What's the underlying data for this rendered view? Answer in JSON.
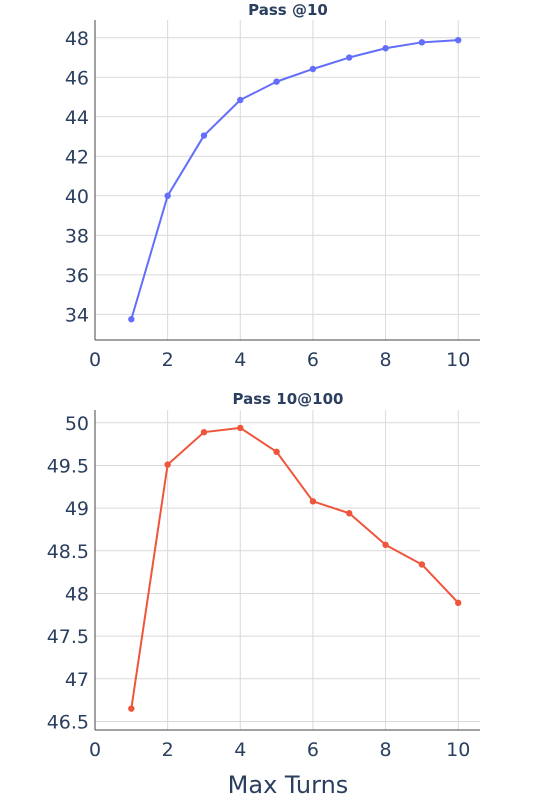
{
  "chart_data": [
    {
      "type": "line",
      "title": "Pass @10",
      "xlabel": "",
      "ylabel": "",
      "color": "#636efa",
      "x": [
        1,
        2,
        3,
        4,
        5,
        6,
        7,
        8,
        9,
        10
      ],
      "y": [
        33.75,
        40.0,
        43.05,
        44.85,
        45.78,
        46.42,
        47.0,
        47.47,
        47.77,
        47.88
      ],
      "xlim": [
        0,
        10.6
      ],
      "ylim": [
        32.7,
        48.9
      ],
      "xticks": [
        0,
        2,
        4,
        6,
        8,
        10
      ],
      "yticks": [
        34,
        36,
        38,
        40,
        42,
        44,
        46,
        48
      ],
      "ytick_labels": [
        "34",
        "36",
        "38",
        "40",
        "42",
        "44",
        "46",
        "48"
      ],
      "grid": true
    },
    {
      "type": "line",
      "title": "Pass 10@100",
      "xlabel": "Max Turns",
      "ylabel": "",
      "color": "#ef553b",
      "x": [
        1,
        2,
        3,
        4,
        5,
        6,
        7,
        8,
        9,
        10
      ],
      "y": [
        46.65,
        49.51,
        49.89,
        49.94,
        49.66,
        49.08,
        48.94,
        48.57,
        48.34,
        47.89
      ],
      "xlim": [
        0,
        10.6
      ],
      "ylim": [
        46.4,
        50.15
      ],
      "xticks": [
        0,
        2,
        4,
        6,
        8,
        10
      ],
      "yticks": [
        46.5,
        47,
        47.5,
        48,
        48.5,
        49,
        49.5,
        50
      ],
      "ytick_labels": [
        "46.5",
        "47",
        "47.5",
        "48",
        "48.5",
        "49",
        "49.5",
        "50"
      ],
      "grid": true
    }
  ]
}
